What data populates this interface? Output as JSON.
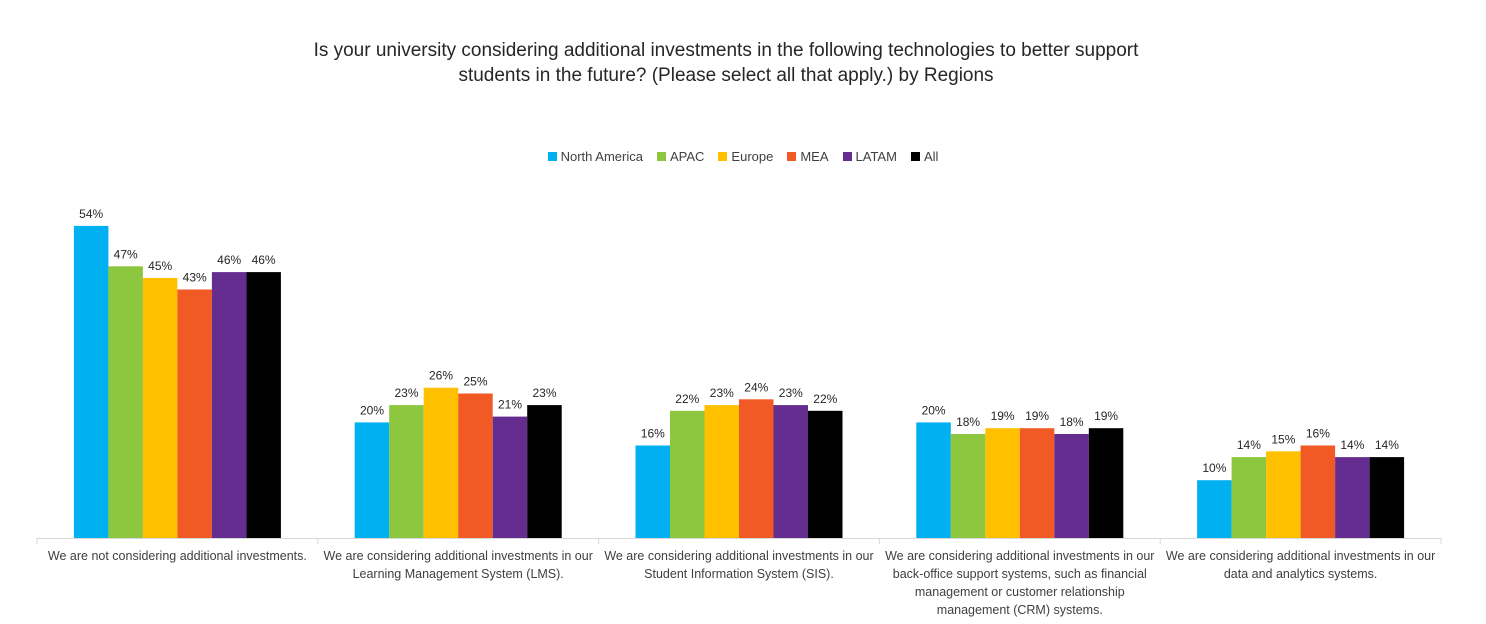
{
  "chart_data": {
    "type": "bar",
    "title_lines": [
      "Is your university considering additional investments in the following technologies to better support",
      "students in the future? (Please select all that apply.) by Regions"
    ],
    "categories": [
      "We are not considering additional investments.",
      "We are considering additional investments in our Learning Management System (LMS).",
      "We are considering additional investments in our Student Information System (SIS).",
      "We are considering additional investments in our back-office support systems, such as financial management or customer relationship management (CRM) systems.",
      "We are considering additional investments in our data and analytics systems."
    ],
    "series": [
      {
        "name": "North America",
        "color": "#00B0F0",
        "values": [
          54,
          20,
          16,
          20,
          10
        ]
      },
      {
        "name": "APAC",
        "color": "#8DC63F",
        "values": [
          47,
          23,
          22,
          18,
          14
        ]
      },
      {
        "name": "Europe",
        "color": "#FFC000",
        "values": [
          45,
          26,
          23,
          19,
          15
        ]
      },
      {
        "name": "MEA",
        "color": "#F15A24",
        "values": [
          43,
          25,
          24,
          19,
          16
        ]
      },
      {
        "name": "LATAM",
        "color": "#662D91",
        "values": [
          46,
          21,
          23,
          18,
          14
        ]
      },
      {
        "name": "All",
        "color": "#000000",
        "values": [
          46,
          23,
          22,
          19,
          14
        ]
      }
    ],
    "value_suffix": "%",
    "ylim": [
      0,
      60
    ],
    "legend_position": "top",
    "grid": false
  }
}
